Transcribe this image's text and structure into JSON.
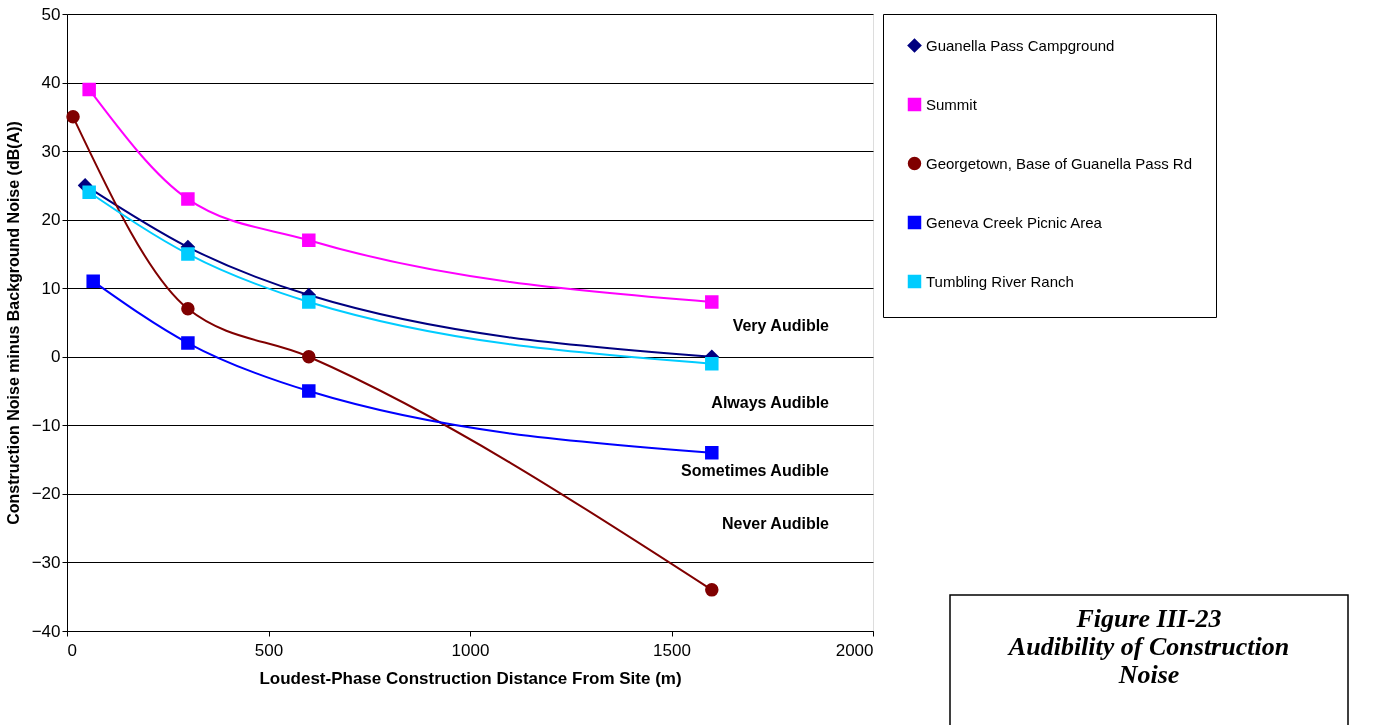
{
  "chart_data": {
    "type": "line",
    "xlabel": "Loudest-Phase Construction Distance From Site (m)",
    "ylabel": "Construction Noise minus Background Noise (dB(A))",
    "xlim": [
      0,
      2000
    ],
    "xticks": [
      0,
      500,
      1000,
      1500,
      2000
    ],
    "ylim": [
      -40,
      50
    ],
    "yticks": [
      -40,
      -30,
      -20,
      -10,
      0,
      10,
      20,
      30,
      40,
      50
    ],
    "grid": "y",
    "legend": "right",
    "line_style": "solid",
    "series": [
      {
        "name": "Guanella Pass Campground",
        "color": "#000080",
        "marker": "diamond",
        "x": [
          45,
          300,
          600,
          1600
        ],
        "values": [
          25,
          16,
          9,
          0
        ]
      },
      {
        "name": "Summit",
        "color": "#ff00ff",
        "marker": "square",
        "x": [
          55,
          300,
          600,
          1600
        ],
        "values": [
          39,
          23,
          17,
          8
        ]
      },
      {
        "name": "Georgetown, Base of Guanella Pass Rd",
        "color": "#800000",
        "marker": "circle",
        "x": [
          15,
          300,
          600,
          1600
        ],
        "values": [
          35,
          7,
          0,
          -34
        ]
      },
      {
        "name": "Geneva Creek Picnic Area",
        "color": "#0000ff",
        "marker": "square",
        "x": [
          65,
          300,
          600,
          1600
        ],
        "values": [
          11,
          2,
          -5,
          -14
        ]
      },
      {
        "name": "Tumbling River Ranch",
        "color": "#00ccff",
        "marker": "square",
        "x": [
          55,
          300,
          600,
          1600
        ],
        "values": [
          24,
          15,
          8,
          -1
        ]
      }
    ],
    "annotations": [
      "Very Audible",
      "Always Audible",
      "Sometimes Audible",
      "Never Audible",
      "Figure III-23\nAudibility of Construction\nNoise"
    ]
  }
}
